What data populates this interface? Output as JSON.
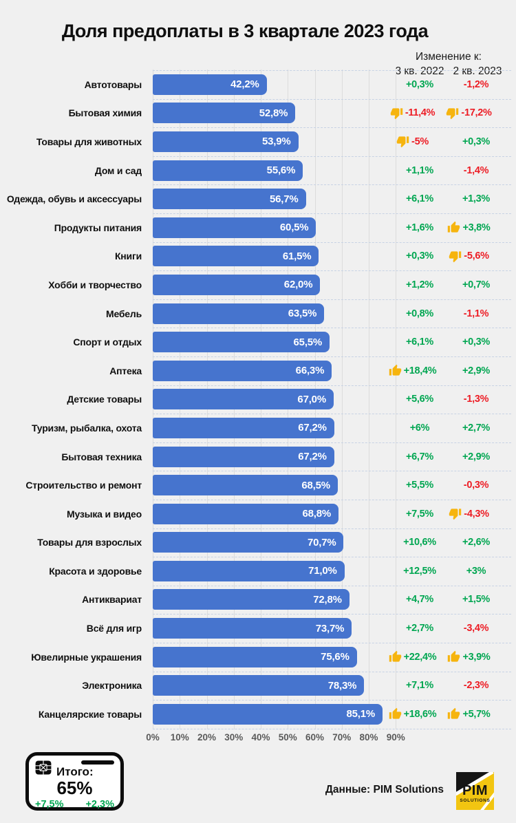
{
  "title": "Доля предоплаты в 3 квартале 2023 года",
  "change_header": {
    "title": "Изменение к:",
    "col1": "3 кв. 2022",
    "col2": "2 кв. 2023"
  },
  "chart_data": {
    "type": "bar",
    "orientation": "horizontal",
    "title": "Доля предоплаты в 3 квартале 2023 года",
    "unit": "%",
    "xlim": [
      0,
      100
    ],
    "x_ticks": [
      "0%",
      "10%",
      "20%",
      "30%",
      "40%",
      "50%",
      "60%",
      "70%",
      "80%",
      "90%"
    ],
    "grid": true,
    "categories": [
      "Автотовары",
      "Бытовая химия",
      "Товары для животных",
      "Дом и сад",
      "Одежда, обувь и аксессуары",
      "Продукты питания",
      "Книги",
      "Хобби и творчество",
      "Мебель",
      "Спорт и отдых",
      "Аптека",
      "Детские товары",
      "Туризм, рыбалка, охота",
      "Бытовая техника",
      "Строительство и ремонт",
      "Музыка и видео",
      "Товары для взрослых",
      "Красота и здоровье",
      "Антиквариат",
      "Всё для игр",
      "Ювелирные украшения",
      "Электроника",
      "Канцелярские товары"
    ],
    "values": [
      42.2,
      52.8,
      53.9,
      55.6,
      56.7,
      60.5,
      61.5,
      62.0,
      63.5,
      65.5,
      66.3,
      67.0,
      67.2,
      67.2,
      68.5,
      68.8,
      70.7,
      71.0,
      72.8,
      73.7,
      75.6,
      78.3,
      85.1
    ],
    "value_labels": [
      "42,2%",
      "52,8%",
      "53,9%",
      "55,6%",
      "56,7%",
      "60,5%",
      "61,5%",
      "62,0%",
      "63,5%",
      "65,5%",
      "66,3%",
      "67,0%",
      "67,2%",
      "67,2%",
      "68,5%",
      "68,8%",
      "70,7%",
      "71,0%",
      "72,8%",
      "73,7%",
      "75,6%",
      "78,3%",
      "85,1%"
    ],
    "change_columns": [
      {
        "label": "3 кв. 2022",
        "values": [
          "+0,3%",
          "-11,4%",
          "-5%",
          "+1,1%",
          "+6,1%",
          "+1,6%",
          "+0,3%",
          "+1,2%",
          "+0,8%",
          "+6,1%",
          "+18,4%",
          "+5,6%",
          "+6%",
          "+6,7%",
          "+5,5%",
          "+7,5%",
          "+10,6%",
          "+12,5%",
          "+4,7%",
          "+2,7%",
          "+22,4%",
          "+7,1%",
          "+18,6%"
        ],
        "icons": [
          null,
          "thumb-down",
          "thumb-down",
          null,
          null,
          null,
          null,
          null,
          null,
          null,
          "thumb-up",
          null,
          null,
          null,
          null,
          null,
          null,
          null,
          null,
          null,
          "thumb-up",
          null,
          "thumb-up"
        ]
      },
      {
        "label": "2 кв. 2023",
        "values": [
          "-1,2%",
          "-17,2%",
          "+0,3%",
          "-1,4%",
          "+1,3%",
          "+3,8%",
          "-5,6%",
          "+0,7%",
          "-1,1%",
          "+0,3%",
          "+2,9%",
          "-1,3%",
          "+2,7%",
          "+2,9%",
          "-0,3%",
          "-4,3%",
          "+2,6%",
          "+3%",
          "+1,5%",
          "-3,4%",
          "+3,9%",
          "-2,3%",
          "+5,7%"
        ],
        "icons": [
          null,
          "thumb-down",
          null,
          null,
          null,
          "thumb-up",
          "thumb-down",
          null,
          null,
          null,
          null,
          null,
          null,
          null,
          null,
          "thumb-down",
          null,
          null,
          null,
          null,
          "thumb-up",
          null,
          "thumb-up"
        ]
      }
    ]
  },
  "totals_card": {
    "label": "Итого:",
    "value": "65%",
    "change_q3_2022": "+7,5%",
    "change_q2_2023": "+2,3%"
  },
  "source": {
    "text": "Данные: PIM Solutions"
  },
  "logo": {
    "line1": "PIM",
    "line2": "SOLUTIONS"
  },
  "colors": {
    "background": "#f0f0f0",
    "bar": "#4674CE",
    "positive": "#00A651",
    "negative": "#ED1C24",
    "gridline": "#dcdcdc",
    "separator": "#c7d2e4",
    "axis_text": "#5a5a5a",
    "logo_yellow": "#F2C511",
    "thumb_yellow": "#F6B40E"
  }
}
